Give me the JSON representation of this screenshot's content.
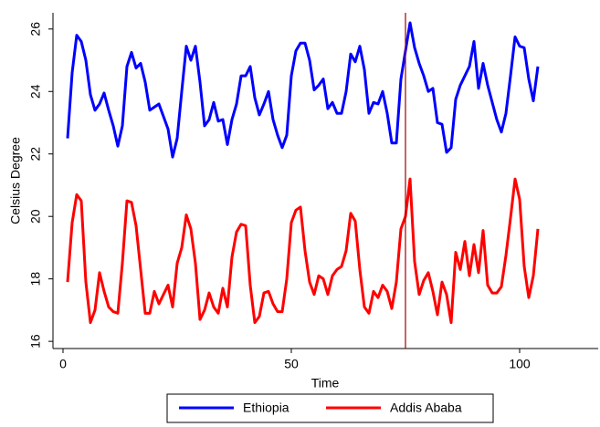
{
  "chart_data": {
    "type": "line",
    "xlabel": "Time",
    "ylabel": "Celsius Degree",
    "x": [
      1,
      2,
      3,
      4,
      5,
      6,
      7,
      8,
      9,
      10,
      11,
      12,
      13,
      14,
      15,
      16,
      17,
      18,
      19,
      20,
      21,
      22,
      23,
      24,
      25,
      26,
      27,
      28,
      29,
      30,
      31,
      32,
      33,
      34,
      35,
      36,
      37,
      38,
      39,
      40,
      41,
      42,
      43,
      44,
      45,
      46,
      47,
      48,
      49,
      50,
      51,
      52,
      53,
      54,
      55,
      56,
      57,
      58,
      59,
      60,
      61,
      62,
      63,
      64,
      65,
      66,
      67,
      68,
      69,
      70,
      71,
      72,
      73,
      74,
      75,
      76,
      77,
      78,
      79,
      80,
      81,
      82,
      83,
      84,
      85,
      86,
      87,
      88,
      89,
      90,
      91,
      92,
      93,
      94,
      95,
      96,
      97,
      98,
      99,
      100,
      101,
      102,
      103,
      104
    ],
    "series": [
      {
        "name": "Ethiopia",
        "color": "#0000ff",
        "values": [
          22.5,
          24.6,
          25.8,
          25.6,
          25.0,
          23.9,
          23.4,
          23.6,
          23.95,
          23.4,
          22.9,
          22.25,
          22.9,
          24.8,
          25.25,
          24.75,
          24.9,
          24.3,
          23.4,
          23.5,
          23.6,
          23.2,
          22.8,
          21.9,
          22.5,
          24.0,
          25.45,
          25.0,
          25.45,
          24.3,
          22.9,
          23.1,
          23.65,
          23.05,
          23.1,
          22.3,
          23.1,
          23.6,
          24.5,
          24.5,
          24.8,
          23.8,
          23.25,
          23.6,
          24.0,
          23.1,
          22.6,
          22.2,
          22.6,
          24.5,
          25.3,
          25.55,
          25.55,
          25.0,
          24.05,
          24.2,
          24.4,
          23.45,
          23.65,
          23.3,
          23.3,
          24.0,
          25.2,
          24.95,
          25.45,
          24.7,
          23.3,
          23.65,
          23.6,
          24.0,
          23.3,
          22.35,
          22.35,
          24.4,
          25.3,
          26.2,
          25.4,
          24.9,
          24.5,
          24.0,
          24.1,
          23.0,
          22.95,
          22.05,
          22.2,
          23.75,
          24.2,
          24.5,
          24.8,
          25.6,
          24.1,
          24.9,
          24.2,
          23.65,
          23.1,
          22.7,
          23.3,
          24.5,
          25.75,
          25.45,
          25.4,
          24.4,
          23.7,
          24.8
        ]
      },
      {
        "name": "Addis Ababa",
        "color": "#ff0000",
        "values": [
          17.9,
          19.8,
          20.7,
          20.5,
          17.9,
          16.6,
          17.0,
          18.2,
          17.6,
          17.1,
          16.95,
          16.9,
          18.5,
          20.5,
          20.45,
          19.7,
          18.3,
          16.9,
          16.9,
          17.6,
          17.2,
          17.5,
          17.8,
          17.1,
          18.5,
          19.0,
          20.05,
          19.6,
          18.5,
          16.7,
          17.0,
          17.55,
          17.1,
          16.9,
          17.7,
          17.1,
          18.7,
          19.5,
          19.75,
          19.7,
          17.8,
          16.6,
          16.8,
          17.55,
          17.6,
          17.2,
          16.95,
          16.95,
          18.0,
          19.8,
          20.2,
          20.3,
          18.9,
          17.9,
          17.5,
          18.1,
          18.0,
          17.5,
          18.1,
          18.3,
          18.4,
          18.9,
          20.1,
          19.85,
          18.3,
          17.1,
          16.9,
          17.6,
          17.4,
          17.8,
          17.6,
          17.05,
          17.9,
          19.6,
          20.0,
          21.2,
          18.55,
          17.5,
          17.95,
          18.2,
          17.6,
          16.85,
          17.9,
          17.5,
          16.6,
          18.85,
          18.3,
          19.2,
          18.1,
          19.1,
          18.2,
          19.55,
          17.8,
          17.55,
          17.55,
          17.75,
          18.75,
          19.95,
          21.2,
          20.55,
          18.4,
          17.4,
          18.1,
          19.6
        ]
      }
    ],
    "reference_line": {
      "x": 75,
      "color": "#a00000"
    },
    "xlim": [
      -2.2,
      117.2
    ],
    "xticks": [
      0,
      50,
      100
    ],
    "ylim": [
      15.77,
      26.52
    ],
    "yticks": [
      16,
      18,
      20,
      22,
      24,
      26
    ],
    "legend": "bottom"
  }
}
